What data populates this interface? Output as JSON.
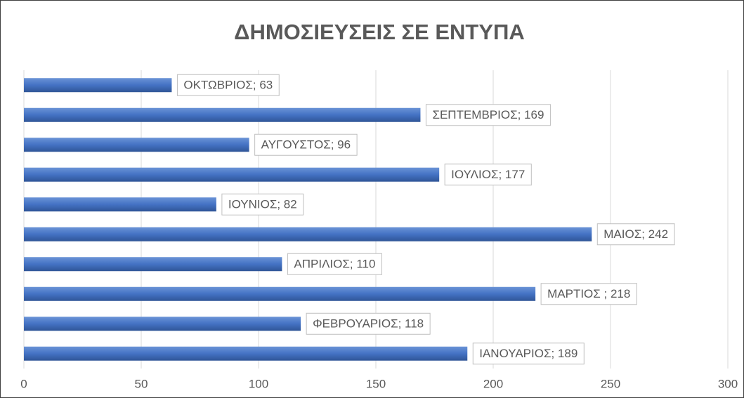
{
  "chart_data": {
    "type": "barh",
    "title": "ΔΗΜΟΣΙΕΥΣΕΙΣ ΣΕ ΕΝΤΥΠΑ",
    "values": [
      189,
      118,
      218,
      110,
      242,
      82,
      177,
      96,
      169,
      63
    ],
    "value_labels": [
      "ΙΑΝΟΥΑΡΙΟΣ; 189",
      "ΦΕΒΡΟΥΑΡΙΟΣ; 118",
      "ΜΑΡΤΙΟΣ ; 218",
      "ΑΠΡΙΛΙΟΣ; 110",
      "ΜΑΙΟΣ; 242",
      "ΙΟΥΝΙΟΣ; 82",
      "ΙΟΥΛΙΟΣ; 177",
      "ΑΥΓΟΥΣΤΟΣ; 96",
      "ΣΕΠΤΕΜΒΡΙΟΣ; 169",
      "ΟΚΤΩΒΡΙΟΣ; 63"
    ],
    "color": "#4472c4",
    "xlim": [
      0,
      300
    ],
    "xticks": [
      0,
      50,
      100,
      150,
      200,
      250,
      300
    ],
    "grid": true
  }
}
